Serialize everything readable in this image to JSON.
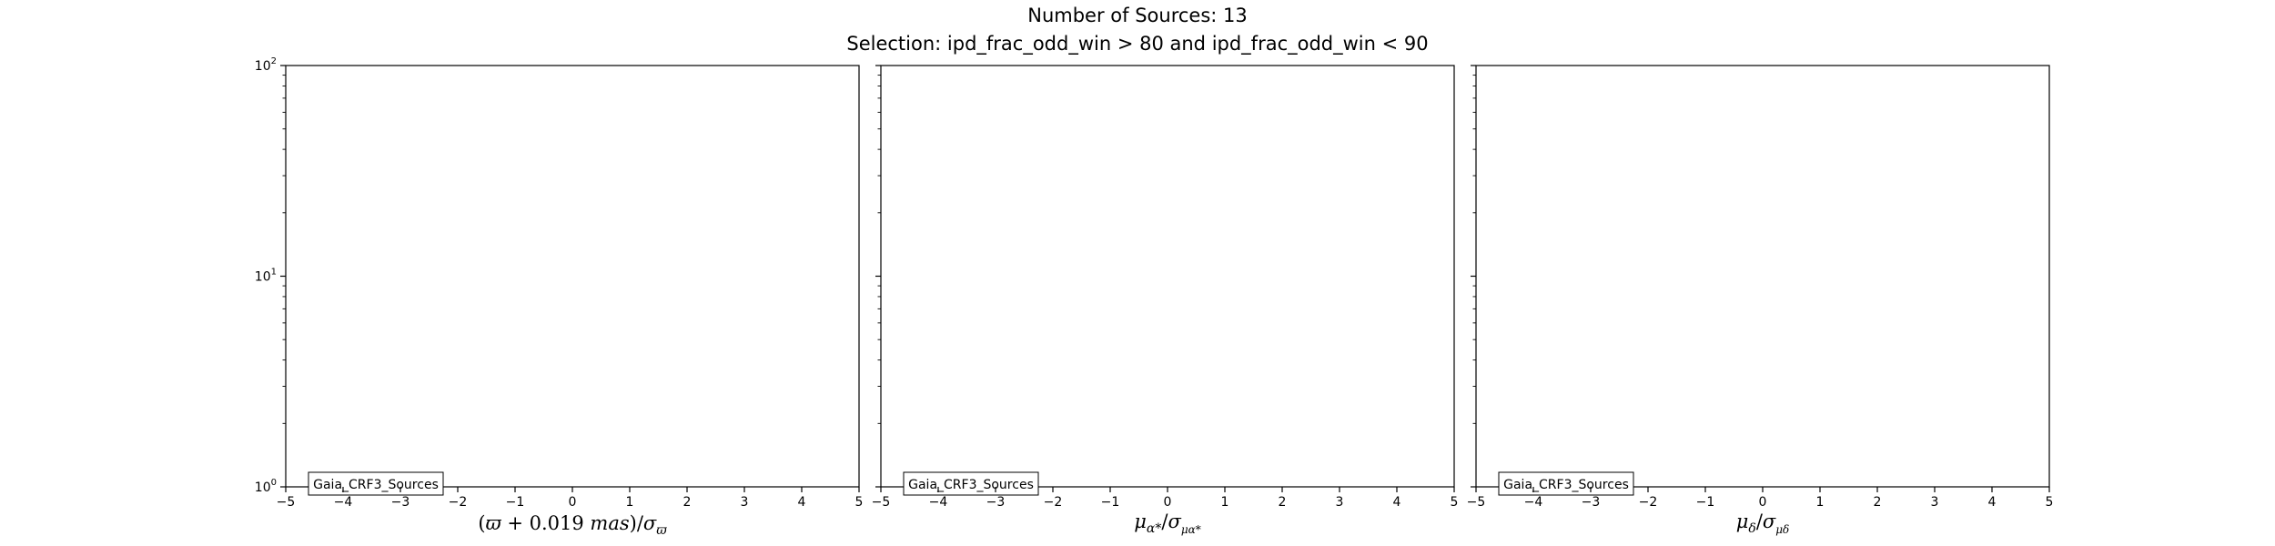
{
  "figure": {
    "title": "Number of Sources: 13",
    "subtitle": "Selection: ipd_frac_odd_win > 80 and ipd_frac_odd_win < 90"
  },
  "chart_data": [
    {
      "type": "bar",
      "xlim": [
        -5,
        5
      ],
      "ylim": [
        1,
        100
      ],
      "yscale": "log",
      "x_ticks": [
        -5,
        -4,
        -3,
        -2,
        -1,
        0,
        1,
        2,
        3,
        4,
        5
      ],
      "x_tick_labels": [
        "−5",
        "−4",
        "−3",
        "−2",
        "−1",
        "0",
        "1",
        "2",
        "3",
        "4",
        "5"
      ],
      "y_ticks": [
        1,
        10,
        100
      ],
      "y_tick_labels": [
        {
          "base": "10",
          "exp": "0"
        },
        {
          "base": "10",
          "exp": "1"
        },
        {
          "base": "10",
          "exp": "2"
        }
      ],
      "xlabel": "(ϖ + 0.019 mas)/σ_ϖ",
      "ylabel": "",
      "legend": {
        "entries": [
          "Gaia_CRF3_Sources"
        ],
        "placement": "lower-left"
      },
      "grid": false,
      "series": [
        {
          "name": "Gaia_CRF3_Sources",
          "values": []
        }
      ]
    },
    {
      "type": "bar",
      "xlim": [
        -5,
        5
      ],
      "ylim": [
        1,
        100
      ],
      "yscale": "log",
      "x_ticks": [
        -5,
        -4,
        -3,
        -2,
        -1,
        0,
        1,
        2,
        3,
        4,
        5
      ],
      "x_tick_labels": [
        "−5",
        "−4",
        "−3",
        "−2",
        "−1",
        "0",
        "1",
        "2",
        "3",
        "4",
        "5"
      ],
      "xlabel": "μ_α*/σ_μα*",
      "ylabel": "",
      "legend": {
        "entries": [
          "Gaia_CRF3_Sources"
        ],
        "placement": "lower-left"
      },
      "grid": false,
      "series": [
        {
          "name": "Gaia_CRF3_Sources",
          "values": []
        }
      ]
    },
    {
      "type": "bar",
      "xlim": [
        -5,
        5
      ],
      "ylim": [
        1,
        100
      ],
      "yscale": "log",
      "x_ticks": [
        -5,
        -4,
        -3,
        -2,
        -1,
        0,
        1,
        2,
        3,
        4,
        5
      ],
      "x_tick_labels": [
        "−5",
        "−4",
        "−3",
        "−2",
        "−1",
        "0",
        "1",
        "2",
        "3",
        "4",
        "5"
      ],
      "xlabel": "μ_δ/σ_μδ",
      "ylabel": "",
      "legend": {
        "entries": [
          "Gaia_CRF3_Sources"
        ],
        "placement": "lower-left"
      },
      "grid": false,
      "series": [
        {
          "name": "Gaia_CRF3_Sources",
          "values": []
        }
      ]
    }
  ]
}
